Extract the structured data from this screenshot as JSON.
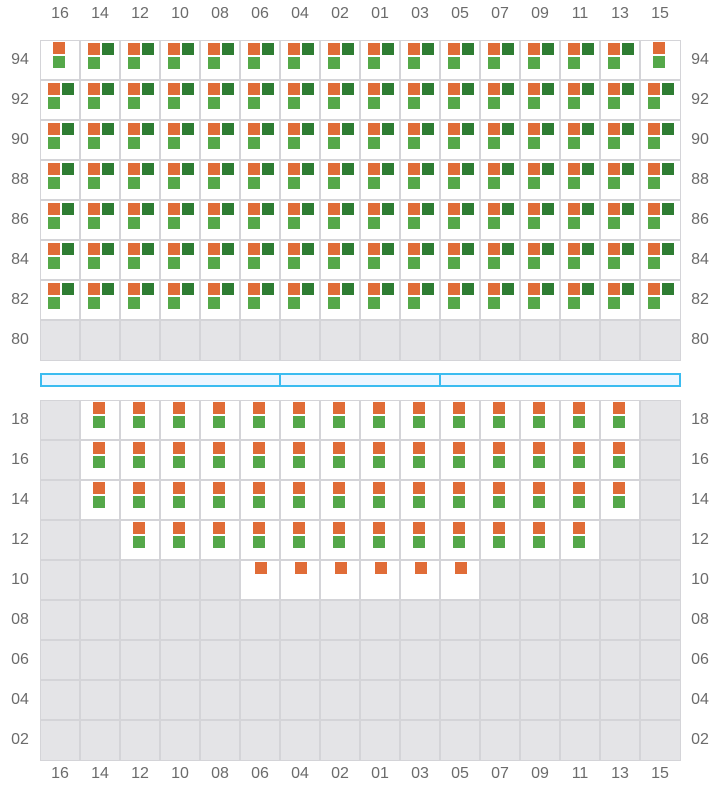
{
  "columns": [
    "16",
    "14",
    "12",
    "10",
    "08",
    "06",
    "04",
    "02",
    "01",
    "03",
    "05",
    "07",
    "09",
    "11",
    "13",
    "15"
  ],
  "top_block": {
    "rows": [
      {
        "label": "94",
        "cells": [
          2,
          3,
          3,
          3,
          3,
          3,
          3,
          3,
          3,
          3,
          3,
          3,
          3,
          3,
          3,
          2
        ]
      },
      {
        "label": "92",
        "cells": [
          3,
          3,
          3,
          3,
          3,
          3,
          3,
          3,
          3,
          3,
          3,
          3,
          3,
          3,
          3,
          3
        ]
      },
      {
        "label": "90",
        "cells": [
          3,
          3,
          3,
          3,
          3,
          3,
          3,
          3,
          3,
          3,
          3,
          3,
          3,
          3,
          3,
          3
        ]
      },
      {
        "label": "88",
        "cells": [
          3,
          3,
          3,
          3,
          3,
          3,
          3,
          3,
          3,
          3,
          3,
          3,
          3,
          3,
          3,
          3
        ]
      },
      {
        "label": "86",
        "cells": [
          3,
          3,
          3,
          3,
          3,
          3,
          3,
          3,
          3,
          3,
          3,
          3,
          3,
          3,
          3,
          3
        ]
      },
      {
        "label": "84",
        "cells": [
          3,
          3,
          3,
          3,
          3,
          3,
          3,
          3,
          3,
          3,
          3,
          3,
          3,
          3,
          3,
          3
        ]
      },
      {
        "label": "82",
        "cells": [
          3,
          3,
          3,
          3,
          3,
          3,
          3,
          3,
          3,
          3,
          3,
          3,
          3,
          3,
          3,
          3
        ]
      },
      {
        "label": "80",
        "cells": [
          0,
          0,
          0,
          0,
          0,
          0,
          0,
          0,
          0,
          0,
          0,
          0,
          0,
          0,
          0,
          0
        ]
      }
    ]
  },
  "bottom_block": {
    "rows": [
      {
        "label": "18",
        "cells": [
          0,
          2,
          2,
          2,
          2,
          2,
          2,
          2,
          2,
          2,
          2,
          2,
          2,
          2,
          2,
          0
        ]
      },
      {
        "label": "16",
        "cells": [
          0,
          2,
          2,
          2,
          2,
          2,
          2,
          2,
          2,
          2,
          2,
          2,
          2,
          2,
          2,
          0
        ]
      },
      {
        "label": "14",
        "cells": [
          0,
          2,
          2,
          2,
          2,
          2,
          2,
          2,
          2,
          2,
          2,
          2,
          2,
          2,
          2,
          0
        ]
      },
      {
        "label": "12",
        "cells": [
          0,
          0,
          2,
          2,
          2,
          2,
          2,
          2,
          2,
          2,
          2,
          2,
          2,
          2,
          0,
          0
        ]
      },
      {
        "label": "10",
        "cells": [
          0,
          0,
          0,
          0,
          0,
          1,
          1,
          1,
          1,
          1,
          1,
          0,
          0,
          0,
          0,
          0
        ]
      },
      {
        "label": "08",
        "cells": [
          0,
          0,
          0,
          0,
          0,
          0,
          0,
          0,
          0,
          0,
          0,
          0,
          0,
          0,
          0,
          0
        ]
      },
      {
        "label": "06",
        "cells": [
          0,
          0,
          0,
          0,
          0,
          0,
          0,
          0,
          0,
          0,
          0,
          0,
          0,
          0,
          0,
          0
        ]
      },
      {
        "label": "04",
        "cells": [
          0,
          0,
          0,
          0,
          0,
          0,
          0,
          0,
          0,
          0,
          0,
          0,
          0,
          0,
          0,
          0
        ]
      },
      {
        "label": "02",
        "cells": [
          0,
          0,
          0,
          0,
          0,
          0,
          0,
          0,
          0,
          0,
          0,
          0,
          0,
          0,
          0,
          0
        ]
      }
    ]
  },
  "colors": {
    "marker_orange": "#e06c37",
    "marker_dark_green": "#2e7d32",
    "marker_light_green": "#55a84a",
    "divider": "#3bbcf0",
    "empty_cell": "#e4e4e7"
  }
}
